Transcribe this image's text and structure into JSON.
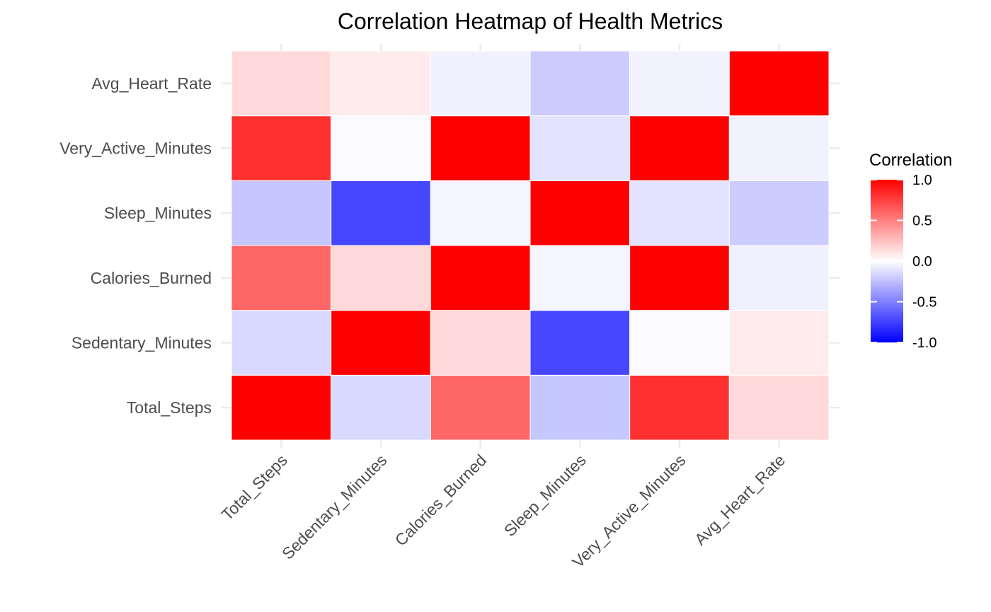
{
  "chart_data": {
    "type": "heatmap",
    "title": "Correlation Heatmap of Health Metrics",
    "xlabel": "",
    "ylabel": "",
    "variables": [
      "Total_Steps",
      "Sedentary_Minutes",
      "Calories_Burned",
      "Sleep_Minutes",
      "Very_Active_Minutes",
      "Avg_Heart_Rate"
    ],
    "matrix": [
      [
        1.0,
        -0.15,
        0.6,
        -0.22,
        0.81,
        0.15
      ],
      [
        -0.15,
        1.0,
        0.15,
        -0.72,
        -0.02,
        0.08
      ],
      [
        0.6,
        0.15,
        1.0,
        -0.04,
        1.1,
        -0.06
      ],
      [
        -0.22,
        -0.72,
        -0.04,
        1.0,
        -0.11,
        -0.2
      ],
      [
        0.81,
        -0.02,
        1.1,
        -0.11,
        1.0,
        -0.05
      ],
      [
        0.15,
        0.08,
        -0.06,
        -0.2,
        -0.05,
        1.0
      ]
    ],
    "legend": {
      "title": "Correlation",
      "position": "right",
      "ticks": [
        1.0,
        0.5,
        0.0,
        -0.5,
        -1.0
      ],
      "tick_labels": [
        "1.0",
        "0.5",
        "0.0",
        "-0.5",
        "-1.0"
      ],
      "range": [
        -1.0,
        1.0
      ]
    },
    "colors": {
      "low": "#0000ff",
      "mid": "#ffffff",
      "high": "#ff0000",
      "grid": "#ebebeb"
    },
    "grid": true
  }
}
